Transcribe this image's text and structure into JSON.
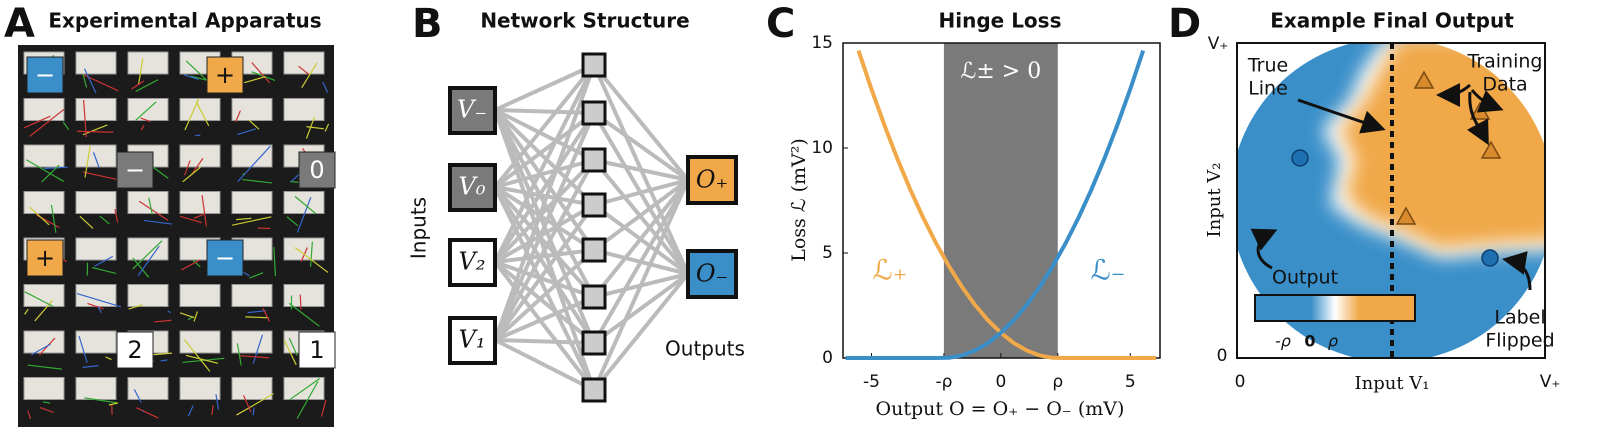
{
  "panel_a": {
    "letter": "A",
    "title": "Experimental Apparatus",
    "labels": [
      "−",
      "+",
      "−",
      "0",
      "+",
      "−",
      "2",
      "1"
    ]
  },
  "panel_b": {
    "letter": "B",
    "title": "Network Structure",
    "inputs": [
      "V₋",
      "V₀",
      "V₂",
      "V₁"
    ],
    "outputs": [
      "O₊",
      "O₋"
    ],
    "inputs_label": "Inputs",
    "outputs_label": "Outputs"
  },
  "chart_data": {
    "letter": "C",
    "type": "line",
    "title": "Hinge Loss",
    "xlabel": "Output O = O₊ − O₋ (mV)",
    "ylabel": "Loss ℒ (mV²)",
    "x": [
      -6,
      -5.5,
      -5,
      -4.5,
      -4,
      -3.5,
      -3,
      -2.5,
      -2,
      -1.5,
      -1,
      -0.5,
      0,
      0.5,
      1,
      1.5,
      2,
      2.5,
      3,
      3.5,
      4,
      4.5,
      5,
      5.5,
      6
    ],
    "series": [
      {
        "name": "ℒ₊",
        "color": "#f0a848",
        "values": [
          null,
          14.64,
          12.8,
          11.09,
          9.49,
          8.02,
          6.68,
          5.46,
          4.36,
          3.38,
          2.53,
          1.8,
          1.2,
          0.71,
          0.36,
          0.12,
          0.01,
          0,
          0,
          0,
          0,
          0,
          0,
          0,
          0
        ]
      },
      {
        "name": "ℒ₋",
        "color": "#3a8fc9",
        "values": [
          0,
          0,
          0,
          0,
          0,
          0,
          0,
          0,
          0.01,
          0.12,
          0.36,
          0.71,
          1.2,
          1.8,
          2.53,
          3.38,
          4.36,
          5.46,
          6.68,
          8.02,
          9.49,
          11.09,
          12.8,
          14.64,
          null
        ]
      }
    ],
    "xlim": [
      -6.1,
      6.15
    ],
    "ylim": [
      0,
      15
    ],
    "xticks": [
      -5,
      {
        "value": -2.2,
        "label": "-ρ"
      },
      0,
      {
        "value": 2.2,
        "label": "ρ"
      },
      5
    ],
    "yticks": [
      0,
      5,
      10,
      15
    ],
    "shaded_region": [
      -2.2,
      2.2
    ],
    "shaded_label": "ℒ± > 0",
    "shaded_color": "#7a7a7a"
  },
  "panel_d": {
    "letter": "D",
    "title": "Example Final Output",
    "xlabel": "Input V₁",
    "ylabel": "Input V₂",
    "xtick_labels": [
      "0",
      "V₊"
    ],
    "ytick_labels": [
      "0",
      "V₊"
    ],
    "annotations": [
      [
        "True",
        "Line"
      ],
      [
        "Training",
        "Data"
      ],
      [
        "Output"
      ],
      [
        "Label",
        "Flipped"
      ]
    ],
    "colorbar_labels": [
      "-ρ",
      "0",
      "ρ"
    ]
  }
}
